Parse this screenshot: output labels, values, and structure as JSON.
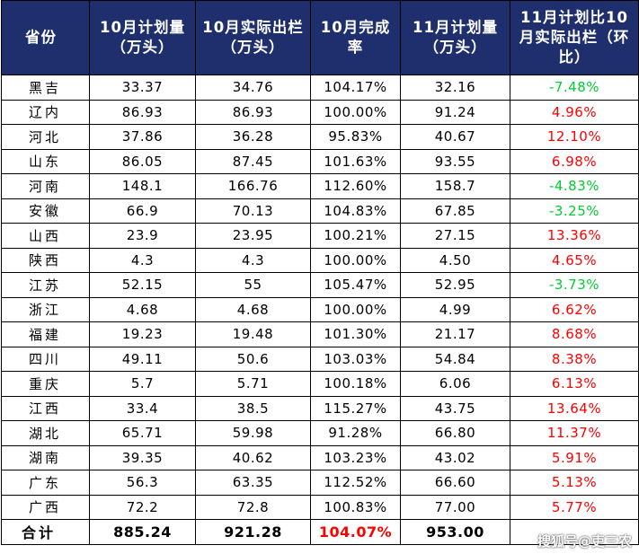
{
  "headers": [
    "省份",
    "10月计划量（万头）",
    "10月实际出栏（万头）",
    "10月完成率",
    "11月计划量（万头）",
    "11月计划比10月实际出栏（环比）"
  ],
  "rows": [
    {
      "province": "黑吉",
      "oct_plan": "33.37",
      "oct_actual": "34.76",
      "oct_rate": "104.17%",
      "nov_plan": "32.16",
      "mom": "-7.48%",
      "dir": "neg"
    },
    {
      "province": "辽内",
      "oct_plan": "86.93",
      "oct_actual": "86.93",
      "oct_rate": "100.00%",
      "nov_plan": "91.24",
      "mom": "4.96%",
      "dir": "pos"
    },
    {
      "province": "河北",
      "oct_plan": "37.86",
      "oct_actual": "36.28",
      "oct_rate": "95.83%",
      "nov_plan": "40.67",
      "mom": "12.10%",
      "dir": "pos"
    },
    {
      "province": "山东",
      "oct_plan": "86.05",
      "oct_actual": "87.45",
      "oct_rate": "101.63%",
      "nov_plan": "93.55",
      "mom": "6.98%",
      "dir": "pos"
    },
    {
      "province": "河南",
      "oct_plan": "148.1",
      "oct_actual": "166.76",
      "oct_rate": "112.60%",
      "nov_plan": "158.7",
      "mom": "-4.83%",
      "dir": "neg"
    },
    {
      "province": "安徽",
      "oct_plan": "66.9",
      "oct_actual": "70.13",
      "oct_rate": "104.83%",
      "nov_plan": "67.85",
      "mom": "-3.25%",
      "dir": "neg"
    },
    {
      "province": "山西",
      "oct_plan": "23.9",
      "oct_actual": "23.95",
      "oct_rate": "100.21%",
      "nov_plan": "27.15",
      "mom": "13.36%",
      "dir": "pos"
    },
    {
      "province": "陕西",
      "oct_plan": "4.3",
      "oct_actual": "4.3",
      "oct_rate": "100.00%",
      "nov_plan": "4.50",
      "mom": "4.65%",
      "dir": "pos"
    },
    {
      "province": "江苏",
      "oct_plan": "52.15",
      "oct_actual": "55",
      "oct_rate": "105.47%",
      "nov_plan": "52.95",
      "mom": "-3.73%",
      "dir": "neg"
    },
    {
      "province": "浙江",
      "oct_plan": "4.68",
      "oct_actual": "4.68",
      "oct_rate": "100.00%",
      "nov_plan": "4.99",
      "mom": "6.62%",
      "dir": "pos"
    },
    {
      "province": "福建",
      "oct_plan": "19.23",
      "oct_actual": "19.48",
      "oct_rate": "101.30%",
      "nov_plan": "21.17",
      "mom": "8.68%",
      "dir": "pos"
    },
    {
      "province": "四川",
      "oct_plan": "49.11",
      "oct_actual": "50.6",
      "oct_rate": "103.03%",
      "nov_plan": "54.84",
      "mom": "8.38%",
      "dir": "pos"
    },
    {
      "province": "重庆",
      "oct_plan": "5.7",
      "oct_actual": "5.71",
      "oct_rate": "100.18%",
      "nov_plan": "6.06",
      "mom": "6.13%",
      "dir": "pos"
    },
    {
      "province": "江西",
      "oct_plan": "33.4",
      "oct_actual": "38.5",
      "oct_rate": "115.27%",
      "nov_plan": "43.75",
      "mom": "13.64%",
      "dir": "pos"
    },
    {
      "province": "湖北",
      "oct_plan": "65.71",
      "oct_actual": "59.98",
      "oct_rate": "91.28%",
      "nov_plan": "66.80",
      "mom": "11.37%",
      "dir": "pos"
    },
    {
      "province": "湖南",
      "oct_plan": "39.35",
      "oct_actual": "40.62",
      "oct_rate": "103.23%",
      "nov_plan": "43.02",
      "mom": "5.91%",
      "dir": "pos"
    },
    {
      "province": "广东",
      "oct_plan": "56.3",
      "oct_actual": "63.35",
      "oct_rate": "112.52%",
      "nov_plan": "66.60",
      "mom": "5.13%",
      "dir": "pos"
    },
    {
      "province": "广西",
      "oct_plan": "72.2",
      "oct_actual": "72.8",
      "oct_rate": "100.83%",
      "nov_plan": "77.00",
      "mom": "5.77%",
      "dir": "pos"
    }
  ],
  "total": {
    "province": "合计",
    "oct_plan": "885.24",
    "oct_actual": "921.28",
    "oct_rate": "104.07%",
    "nov_plan": "953.00",
    "mom": ""
  },
  "watermark": "搜狐号@吏三农",
  "colors": {
    "header_bg": "#1f2f6d",
    "positive": "#ff0000",
    "negative": "#00cc33"
  }
}
